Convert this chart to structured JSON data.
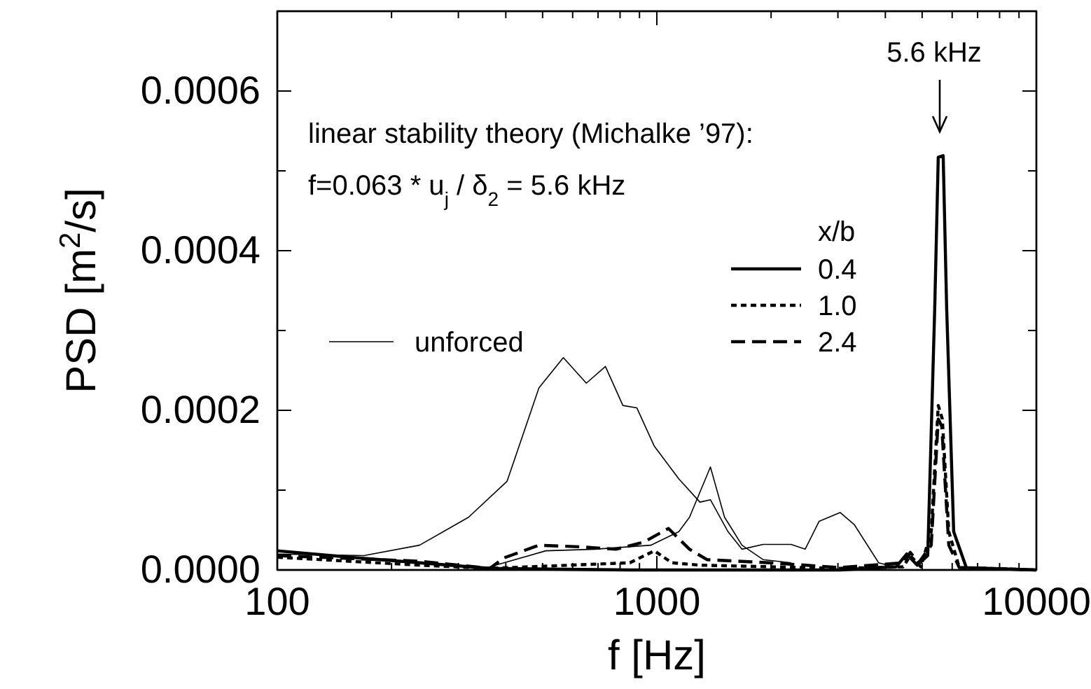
{
  "chart_data": {
    "type": "line",
    "xlabel": "f [Hz]",
    "ylabel": "PSD [m$^{2}$/s]",
    "log": "x",
    "legend_title": "x/b",
    "legend": "center",
    "grid": false,
    "marker": "none",
    "xlim": [
      100,
      10000
    ],
    "ylim": [
      0,
      0.0007
    ],
    "xticks": [
      100,
      {
        "value": 200,
        "label": null
      },
      {
        "value": 300,
        "label": null
      },
      {
        "value": 400,
        "label": null
      },
      {
        "value": 500,
        "label": null
      },
      {
        "value": 600,
        "label": null
      },
      {
        "value": 700,
        "label": null
      },
      {
        "value": 800,
        "label": null
      },
      {
        "value": 900,
        "label": null
      },
      1000,
      {
        "value": 2000,
        "label": null
      },
      {
        "value": 3000,
        "label": null
      },
      {
        "value": 4000,
        "label": null
      },
      {
        "value": 5000,
        "label": null
      },
      {
        "value": 6000,
        "label": null
      },
      {
        "value": 7000,
        "label": null
      },
      {
        "value": 8000,
        "label": null
      },
      {
        "value": 9000,
        "label": null
      },
      10000
    ],
    "yticks": [
      {
        "value": 0,
        "label": "0.0000"
      },
      {
        "value": 0.0001,
        "label": null
      },
      {
        "value": 0.0002,
        "label": "0.0002"
      },
      {
        "value": 0.0003,
        "label": null
      },
      {
        "value": 0.0004,
        "label": "0.0004"
      },
      {
        "value": 0.0005,
        "label": null
      },
      {
        "value": 0.0006,
        "label": "0.0006"
      },
      {
        "value": 0.0007,
        "label": null
      }
    ],
    "series": [
      {
        "name": "unforced",
        "color": "#000000",
        "line_style": "solid",
        "x": [
          100,
          169,
          237,
          319,
          403,
          489,
          567,
          652,
          732,
          814,
          886,
          985,
          1143,
          1299,
          1384,
          1540,
          1676,
          1905,
          2258,
          2459,
          2677,
          3040,
          3311,
          3841,
          4273
        ],
        "values": [
          2e-05,
          1.8e-05,
          3.1e-05,
          6.6e-05,
          0.000111,
          0.000228,
          0.000266,
          0.000234,
          0.000255,
          0.000206,
          0.000203,
          0.000155,
          0.000114,
          8.5e-05,
          8.8e-05,
          4.8e-05,
          2.6e-05,
          3.2e-05,
          3.2e-05,
          2.6e-05,
          6.1e-05,
          7.2e-05,
          5.7e-05,
          9e-06,
          3e-06
        ]
      },
      {
        "color": "#000000",
        "line_style": "solid",
        "x": [
          363,
          510,
          687,
          964,
          1143,
          1219,
          1384,
          1508,
          1593,
          1676,
          1905,
          2258
        ],
        "values": [
          4e-06,
          2.4e-05,
          2.6e-05,
          3.1e-05,
          4.8e-05,
          6.6e-05,
          0.000129,
          6.6e-05,
          4.8e-05,
          3.1e-05,
          1.3e-05,
          9e-06
        ]
      },
      {
        "name": "0.4",
        "color": "#000000",
        "line_style": "solid",
        "x": [
          100,
          155,
          237,
          363,
          849,
          3040,
          4273,
          4555,
          4855,
          5173,
          5398,
          5514,
          5681,
          5802,
          6055,
          6536,
          10000
        ],
        "values": [
          2.4e-05,
          1.6e-05,
          9e-06,
          2e-06,
          0,
          0,
          4e-06,
          2e-05,
          6e-06,
          1.8e-05,
          0.000329,
          0.000517,
          0.000519,
          0.000329,
          4.8e-05,
          3e-06,
          0
        ]
      },
      {
        "name": "1.0",
        "color": "#000000",
        "line_style": "dotted",
        "x": [
          100,
          237,
          363,
          849,
          985,
          1096,
          1299,
          1987,
          3040,
          4459,
          4652,
          4959,
          5284,
          5514,
          5652,
          5878,
          6264,
          10000
        ],
        "values": [
          1.6e-05,
          6e-06,
          2e-06,
          9e-06,
          2.4e-05,
          9e-06,
          6e-06,
          4e-06,
          2e-06,
          4e-06,
          1.8e-05,
          4e-06,
          4.8e-05,
          0.000206,
          0.000189,
          4.8e-05,
          3e-06,
          0
        ]
      },
      {
        "name": "2.4",
        "color": "#000000",
        "line_style": "dashed",
        "x": [
          100,
          237,
          363,
          395,
          489,
          630,
          780,
          925,
          1073,
          1219,
          1355,
          1987,
          3040,
          4459,
          4652,
          4897,
          5284,
          5514,
          5632,
          5878,
          6264,
          10000
        ],
        "values": [
          1.8e-05,
          1.1e-05,
          2e-06,
          1.5e-05,
          3.1e-05,
          2.9e-05,
          2.6e-05,
          3.5e-05,
          5.2e-05,
          2.6e-05,
          1.3e-05,
          9e-06,
          3e-06,
          9e-06,
          2.2e-05,
          9e-06,
          3.1e-05,
          0.000189,
          0.00018,
          3.1e-05,
          3e-06,
          0
        ]
      }
    ],
    "annotations": [
      "5.6 kHz",
      "linear stability theory (Michalke ’97):",
      "f=0.063 * u$_{j}$ / δ$_{2}$ = 5.6 kHz"
    ]
  }
}
